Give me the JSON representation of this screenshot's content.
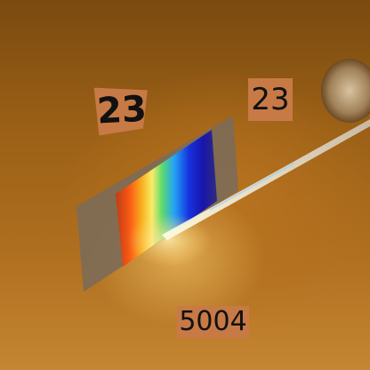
{
  "labels": {
    "left": "23",
    "right": "23",
    "bottom": "5004"
  },
  "colors": {
    "background": "#a8691c",
    "label_fill": "#c77a45",
    "label_text": "#111111"
  }
}
